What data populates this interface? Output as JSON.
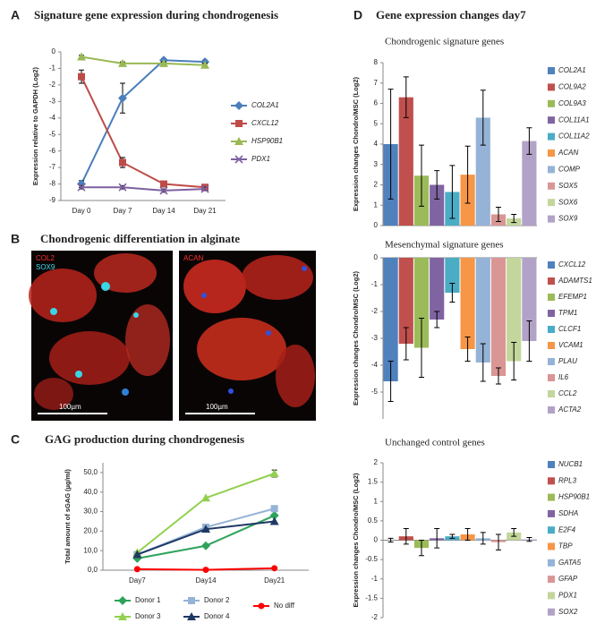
{
  "figure": {
    "panel_labels": [
      "A",
      "B",
      "C",
      "D"
    ],
    "panel_d_title": "Gene expression changes day7"
  },
  "micrograph": {
    "title": "Chondrogenic differentiation in alginate",
    "images": [
      {
        "labels": [
          "COL2",
          "SOX9"
        ],
        "scale_bar": "100µm"
      },
      {
        "labels": [
          "ACAN"
        ],
        "scale_bar": "100µm"
      }
    ]
  },
  "chart_data": [
    {
      "type": "line",
      "title": "Signature gene expression during chondrogenesis",
      "ylabel": "Expression relative to GAPDH (Log2)",
      "categories": [
        "Day 0",
        "Day 7",
        "Day 14",
        "Day 21"
      ],
      "ylim": [
        -9,
        0
      ],
      "yticks": [
        0,
        -1,
        -2,
        -3,
        -4,
        -5,
        -6,
        -7,
        -8,
        -9
      ],
      "legend": "right",
      "series": [
        {
          "name": "COL2A1",
          "color": "#4a7ebb",
          "marker": "diamond",
          "values": [
            -8.0,
            -2.8,
            -0.5,
            -0.6
          ],
          "errors": [
            0.2,
            0.9,
            0.1,
            0.1
          ]
        },
        {
          "name": "CXCL12",
          "color": "#be4b48",
          "marker": "square",
          "values": [
            -1.5,
            -6.7,
            -8.0,
            -8.2
          ],
          "errors": [
            0.4,
            0.3,
            0.1,
            0.1
          ]
        },
        {
          "name": "HSP90B1",
          "color": "#98b954",
          "marker": "triangle",
          "values": [
            -0.3,
            -0.7,
            -0.7,
            -0.8
          ],
          "errors": [
            0.1,
            0.1,
            0.1,
            0.1
          ]
        },
        {
          "name": "PDX1",
          "color": "#7d60a0",
          "marker": "x",
          "values": [
            -8.2,
            -8.2,
            -8.4,
            -8.3
          ],
          "errors": [
            0.1,
            0.1,
            0.1,
            0.1
          ]
        }
      ]
    },
    {
      "type": "line",
      "title": "GAG production during chondrogenesis",
      "ylabel": "Total amount of sGAG (µg/ml)",
      "categories": [
        "Day7",
        "Day14",
        "Day21"
      ],
      "ylim": [
        0,
        55
      ],
      "yticks": [
        {
          "value": 0,
          "label": "0,0"
        },
        {
          "value": 10,
          "label": "10,0"
        },
        {
          "value": 20,
          "label": "20,0"
        },
        {
          "value": 30,
          "label": "30,0"
        },
        {
          "value": 40,
          "label": "40,0"
        },
        {
          "value": 50,
          "label": "50,0"
        }
      ],
      "legend": "bottom",
      "series": [
        {
          "name": "Donor 1",
          "color": "#2ea35a",
          "marker": "diamond",
          "values": [
            6,
            12.5,
            28
          ]
        },
        {
          "name": "Donor 2",
          "color": "#95b3d7",
          "marker": "square",
          "values": [
            8,
            22,
            31.5
          ]
        },
        {
          "name": "No diff",
          "color": "#ff0000",
          "marker": "circle",
          "values": [
            0.5,
            0.2,
            1.0
          ]
        },
        {
          "name": "Donor 3",
          "color": "#92d050",
          "marker": "triangle",
          "values": [
            9,
            37,
            49.5
          ],
          "errors": [
            null,
            null,
            1.8
          ]
        },
        {
          "name": "Donor 4",
          "color": "#1f3864",
          "marker": "triangle",
          "values": [
            8,
            21,
            25
          ]
        }
      ]
    },
    {
      "type": "bar",
      "title": "Chondrogenic signature genes",
      "ylabel": "Expression changes Chondro/MSC (Log2)",
      "categories": [
        "COL2A1",
        "COL9A2",
        "COL9A3",
        "COL11A1",
        "COL11A2",
        "ACAN",
        "COMP",
        "SOX5",
        "SOX6",
        "SOX9"
      ],
      "colors": [
        "#4f81bd",
        "#c0504d",
        "#9bbb59",
        "#8064a2",
        "#4bacc6",
        "#f79646",
        "#95b3d7",
        "#d99694",
        "#c3d69b",
        "#b3a2c7"
      ],
      "values": [
        4.0,
        6.3,
        2.45,
        2.0,
        1.65,
        2.5,
        5.3,
        0.55,
        0.35,
        4.15
      ],
      "errors": [
        2.7,
        1.0,
        1.5,
        0.7,
        1.3,
        1.4,
        1.35,
        0.35,
        0.2,
        0.65
      ],
      "ylim": [
        0,
        8
      ],
      "yticks": [
        0,
        1,
        2,
        3,
        4,
        5,
        6,
        7,
        8
      ],
      "legend": "right"
    },
    {
      "type": "bar",
      "title": "Mesenchymal signature genes",
      "ylabel": "Expression changes Chondro/MSC (Log2)",
      "categories": [
        "CXCL12",
        "ADAMTS1",
        "EFEMP1",
        "TPM1",
        "CLCF1",
        "VCAM1",
        "PLAU",
        "IL6",
        "CCL2",
        "ACTA2"
      ],
      "colors": [
        "#4f81bd",
        "#c0504d",
        "#9bbb59",
        "#8064a2",
        "#4bacc6",
        "#f79646",
        "#95b3d7",
        "#d99694",
        "#c3d69b",
        "#b3a2c7"
      ],
      "values": [
        -4.6,
        -3.2,
        -3.35,
        -2.3,
        -1.3,
        -3.4,
        -3.9,
        -4.4,
        -3.85,
        -3.1
      ],
      "errors": [
        0.75,
        0.6,
        1.1,
        0.3,
        0.35,
        0.45,
        0.7,
        0.3,
        0.7,
        0.75
      ],
      "ylim": [
        -6,
        0
      ],
      "yticks": [
        0,
        -1,
        -2,
        -3,
        -4,
        -5
      ],
      "legend": "right"
    },
    {
      "type": "bar",
      "title": "Unchanged control genes",
      "ylabel": "Expression changes Chondro/MSC (Log2)",
      "categories": [
        "NUCB1",
        "RPL3",
        "HSP90B1",
        "SDHA",
        "E2F4",
        "TBP",
        "GATA5",
        "GFAP",
        "PDX1",
        "SOX2"
      ],
      "colors": [
        "#4f81bd",
        "#c0504d",
        "#9bbb59",
        "#8064a2",
        "#4bacc6",
        "#f79646",
        "#95b3d7",
        "#d99694",
        "#c3d69b",
        "#b3a2c7"
      ],
      "values": [
        0.0,
        0.1,
        -0.2,
        0.05,
        0.1,
        0.15,
        0.05,
        -0.05,
        0.2,
        0.02
      ],
      "errors": [
        0.05,
        0.2,
        0.2,
        0.25,
        0.05,
        0.15,
        0.15,
        0.2,
        0.1,
        0.05
      ],
      "ylim": [
        -2,
        2
      ],
      "yticks": [
        2,
        1.5,
        1,
        0.5,
        0,
        -0.5,
        -1,
        -1.5,
        -2
      ],
      "legend": "right"
    }
  ]
}
